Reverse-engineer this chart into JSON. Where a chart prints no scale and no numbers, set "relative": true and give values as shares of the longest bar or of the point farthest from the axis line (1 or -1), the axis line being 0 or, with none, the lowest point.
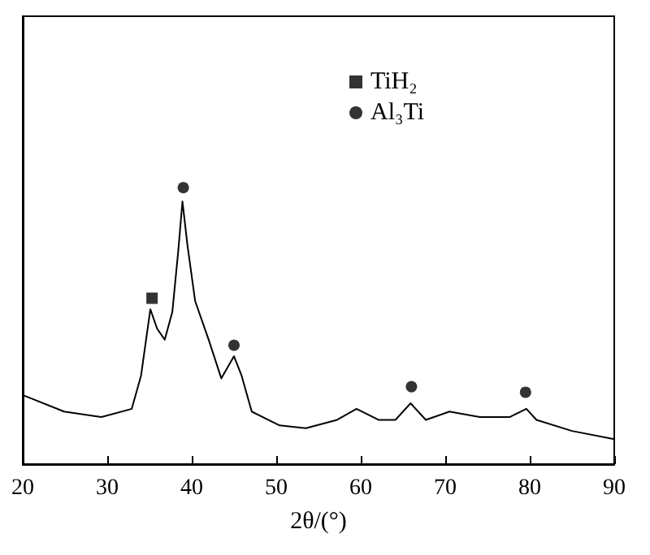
{
  "chart_data": {
    "type": "line",
    "xlabel": "2θ/(°)",
    "relative": true,
    "tick_labels": "x",
    "grid": false,
    "legend": "top right",
    "marker": "none",
    "xlim": [
      20,
      90
    ],
    "xticks": [
      20,
      30,
      40,
      50,
      60,
      70,
      80,
      90
    ],
    "series": [
      {
        "color": "#000000",
        "x": [
          20,
          24.9,
          29.3,
          32.9,
          34.0,
          35.1,
          35.9,
          36.8,
          37.7,
          38.4,
          38.9,
          39.5,
          40.4,
          42.0,
          43.5,
          45.0,
          45.9,
          47.1,
          50.4,
          53.5,
          57.2,
          59.5,
          62.1,
          64.1,
          65.9,
          67.7,
          70.5,
          74.1,
          77.6,
          79.6,
          80.8,
          85.0,
          90
        ],
        "values": [
          0.25,
          0.19,
          0.17,
          0.2,
          0.32,
          0.56,
          0.49,
          0.45,
          0.55,
          0.77,
          0.95,
          0.79,
          0.59,
          0.45,
          0.31,
          0.39,
          0.32,
          0.19,
          0.14,
          0.13,
          0.16,
          0.2,
          0.16,
          0.16,
          0.22,
          0.16,
          0.19,
          0.17,
          0.17,
          0.2,
          0.16,
          0.12,
          0.09
        ]
      },
      {
        "type": "scatter",
        "name": "TiH₂",
        "color": "#000000",
        "marker": "square",
        "x": [
          35.3
        ],
        "values": [
          0.6
        ]
      },
      {
        "type": "scatter",
        "name": "Al₃Ti",
        "color": "#000000",
        "marker": "circle",
        "x": [
          39.0,
          45.0,
          66.0,
          79.5
        ],
        "values": [
          1,
          0.43,
          0.28,
          0.26
        ]
      }
    ]
  }
}
